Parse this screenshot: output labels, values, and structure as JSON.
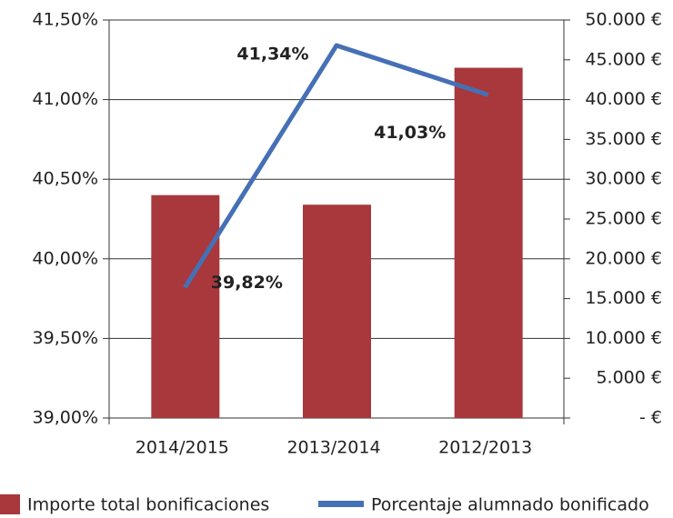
{
  "chart_data": {
    "type": "bar-line",
    "categories": [
      "2014/2015",
      "2013/2014",
      "2012/2013"
    ],
    "series": [
      {
        "name": "Importe total bonificaciones",
        "type": "bar",
        "color": "#a8383b",
        "axis": "y2",
        "values": [
          28000,
          26800,
          44000
        ]
      },
      {
        "name": "Porcentaje alumnado bonificado",
        "type": "line",
        "color": "#4570b5",
        "axis": "y",
        "values": [
          39.82,
          41.34,
          41.03
        ],
        "value_labels": [
          "39,82%",
          "41,34%",
          "41,03%"
        ]
      }
    ],
    "ylim": [
      39,
      41.5
    ],
    "yticks": [
      {
        "value": 39,
        "label": "39,00%"
      },
      {
        "value": 39.5,
        "label": "39,50%"
      },
      {
        "value": 40,
        "label": "40,00%"
      },
      {
        "value": 40.5,
        "label": "40,50%"
      },
      {
        "value": 41,
        "label": "41,00%"
      },
      {
        "value": 41.5,
        "label": "41,50%"
      }
    ],
    "y2lim": [
      0,
      50000
    ],
    "y2ticks": [
      {
        "value": 0,
        "label": "- €"
      },
      {
        "value": 5000,
        "label": "5.000 €"
      },
      {
        "value": 10000,
        "label": "10.000 €"
      },
      {
        "value": 15000,
        "label": "15.000 €"
      },
      {
        "value": 20000,
        "label": "20.000 €"
      },
      {
        "value": 25000,
        "label": "25.000 €"
      },
      {
        "value": 30000,
        "label": "30.000 €"
      },
      {
        "value": 35000,
        "label": "35.000 €"
      },
      {
        "value": 40000,
        "label": "40.000 €"
      },
      {
        "value": 45000,
        "label": "45.000 €"
      },
      {
        "value": 50000,
        "label": "50.000 €"
      }
    ],
    "grid": true,
    "legend": "bottom"
  }
}
